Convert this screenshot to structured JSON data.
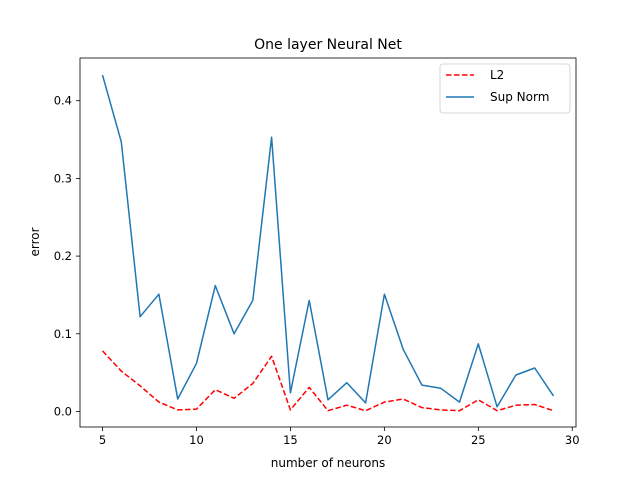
{
  "chart_data": {
    "type": "line",
    "title": "One layer Neural Net",
    "xlabel": "number of neurons",
    "ylabel": "error",
    "xlim": [
      3.8,
      30.2
    ],
    "ylim": [
      -0.02,
      0.455
    ],
    "xticks": [
      5,
      10,
      15,
      20,
      25,
      30
    ],
    "yticks": [
      0.0,
      0.1,
      0.2,
      0.3,
      0.4
    ],
    "xtick_labels": [
      "5",
      "10",
      "15",
      "20",
      "25",
      "30"
    ],
    "ytick_labels": [
      "0.0",
      "0.1",
      "0.2",
      "0.3",
      "0.4"
    ],
    "grid": false,
    "legend_position": "top-right",
    "x": [
      5,
      6,
      7,
      8,
      9,
      10,
      11,
      12,
      13,
      14,
      15,
      16,
      17,
      18,
      19,
      20,
      21,
      22,
      23,
      24,
      25,
      26,
      27,
      28,
      29
    ],
    "series": [
      {
        "name": "L2",
        "style": "dashed",
        "color": "#ff0000",
        "values": [
          0.078,
          0.052,
          0.033,
          0.012,
          0.002,
          0.003,
          0.028,
          0.017,
          0.036,
          0.071,
          0.002,
          0.031,
          0.001,
          0.008,
          0.001,
          0.012,
          0.016,
          0.005,
          0.002,
          0.001,
          0.015,
          0.001,
          0.008,
          0.009,
          0.001
        ]
      },
      {
        "name": "Sup Norm",
        "style": "solid",
        "color": "#1f77b4",
        "values": [
          0.433,
          0.347,
          0.122,
          0.151,
          0.016,
          0.062,
          0.162,
          0.1,
          0.143,
          0.353,
          0.024,
          0.143,
          0.015,
          0.037,
          0.011,
          0.151,
          0.08,
          0.034,
          0.03,
          0.012,
          0.087,
          0.006,
          0.047,
          0.056,
          0.02
        ]
      }
    ]
  }
}
